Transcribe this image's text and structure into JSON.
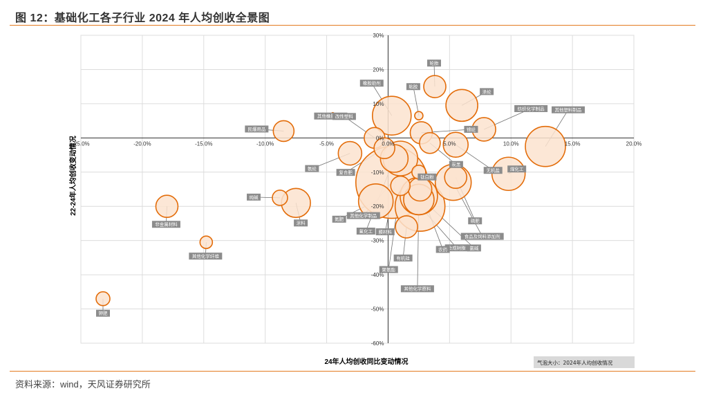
{
  "figure_title": "图 12：基础化工各子行业 2024 年人均创收全景图",
  "source_note": "资料来源：wind，天风证券研究所",
  "colors": {
    "bubble_fill": "#fce3cf",
    "bubble_stroke": "#e36c09",
    "accent_rule": "#e37a1f"
  },
  "chart_data": {
    "type": "scatter",
    "xlabel": "24年人均创收同比变动情况",
    "ylabel": "22-24年人均创收变动情况",
    "bubble_note": "气泡大小：2024年人均创收情况",
    "xlim": [
      -25,
      20
    ],
    "ylim": [
      -60,
      30
    ],
    "x_ticks": [
      -25,
      -20,
      -15,
      -10,
      -5,
      0,
      5,
      10,
      15,
      20
    ],
    "x_tick_labels": [
      "-25.0%",
      "-20.0%",
      "-15.0%",
      "-10.0%",
      "-5.0%",
      "0.0%",
      "5.0%",
      "10.0%",
      "15.0%",
      "20.0%"
    ],
    "y_ticks": [
      -60,
      -50,
      -40,
      -30,
      -20,
      -10,
      0,
      10,
      20,
      30
    ],
    "y_tick_labels": [
      "-60%",
      "-50%",
      "-40%",
      "-30%",
      "-20%",
      "-10%",
      "0%",
      "10%",
      "20%",
      "30%"
    ],
    "grid": true,
    "points": [
      {
        "name": "钾肥",
        "x": -23.2,
        "y": -47,
        "size": 10
      },
      {
        "name": "非金属材料",
        "x": -18,
        "y": -20,
        "size": 16
      },
      {
        "name": "其他化学纤维",
        "x": -14.8,
        "y": -30.5,
        "size": 9
      },
      {
        "name": "民爆用品",
        "x": -8.5,
        "y": 2,
        "size": 15
      },
      {
        "name": "纯碱",
        "x": -8.8,
        "y": -17.5,
        "size": 11
      },
      {
        "name": "涂料",
        "x": -7.5,
        "y": -19,
        "size": 21
      },
      {
        "name": "其他橡胶制品",
        "x": -4.5,
        "y": 7,
        "size": 2
      },
      {
        "name": "氨纶",
        "x": -3.1,
        "y": -4.5,
        "size": 17
      },
      {
        "name": "改性塑料",
        "x": -1.1,
        "y": 0,
        "size": 15
      },
      {
        "name": "橡胶助剂",
        "x": 0.3,
        "y": 6.5,
        "size": 28
      },
      {
        "name": "复合肥",
        "x": -0.3,
        "y": -3,
        "size": 15
      },
      {
        "name": "氮肥",
        "x": -1,
        "y": -18.5,
        "size": 25
      },
      {
        "name": "其他化学制品",
        "x": 0.3,
        "y": -13,
        "size": 52
      },
      {
        "name": "氟化工",
        "x": 0.5,
        "y": -6,
        "size": 20
      },
      {
        "name": "膜材料",
        "x": 1,
        "y": -6,
        "size": 25
      },
      {
        "name": "粘胶",
        "x": 2.5,
        "y": 6.5,
        "size": 6
      },
      {
        "name": "轮胎",
        "x": 3.8,
        "y": 15,
        "size": 16
      },
      {
        "name": "涤纶",
        "x": 6,
        "y": 9.5,
        "size": 23
      },
      {
        "name": "纺织化学制品",
        "x": 7.8,
        "y": 2.5,
        "size": 17
      },
      {
        "name": "其他塑料制品",
        "x": 12.8,
        "y": -2.5,
        "size": 29
      },
      {
        "name": "锦纶",
        "x": 2.7,
        "y": 1.5,
        "size": 16
      },
      {
        "name": "炭黑",
        "x": 3.4,
        "y": -1.5,
        "size": 15
      },
      {
        "name": "钛白粉",
        "x": 2.5,
        "y": -10,
        "size": 10
      },
      {
        "name": "煤化工",
        "x": 9.8,
        "y": -10.5,
        "size": 24
      },
      {
        "name": "无机盐",
        "x": 5.5,
        "y": -2,
        "size": 18
      },
      {
        "name": "食品及饲料添加剂",
        "x": 5.3,
        "y": -13,
        "size": 26
      },
      {
        "name": "磷肥",
        "x": 5.5,
        "y": -11.5,
        "size": 16
      },
      {
        "name": "合成树脂",
        "x": 2.6,
        "y": -20,
        "size": 36
      },
      {
        "name": "氯碱",
        "x": 2.5,
        "y": -17,
        "size": 27
      },
      {
        "name": "有机硅",
        "x": 1.5,
        "y": -26,
        "size": 16
      },
      {
        "name": "农药",
        "x": 2.6,
        "y": -15,
        "size": 17
      },
      {
        "name": "聚氨酯",
        "x": 1,
        "y": -14,
        "size": 14
      },
      {
        "name": "其他化学原料",
        "x": 2.5,
        "y": -18,
        "size": 22
      }
    ]
  }
}
